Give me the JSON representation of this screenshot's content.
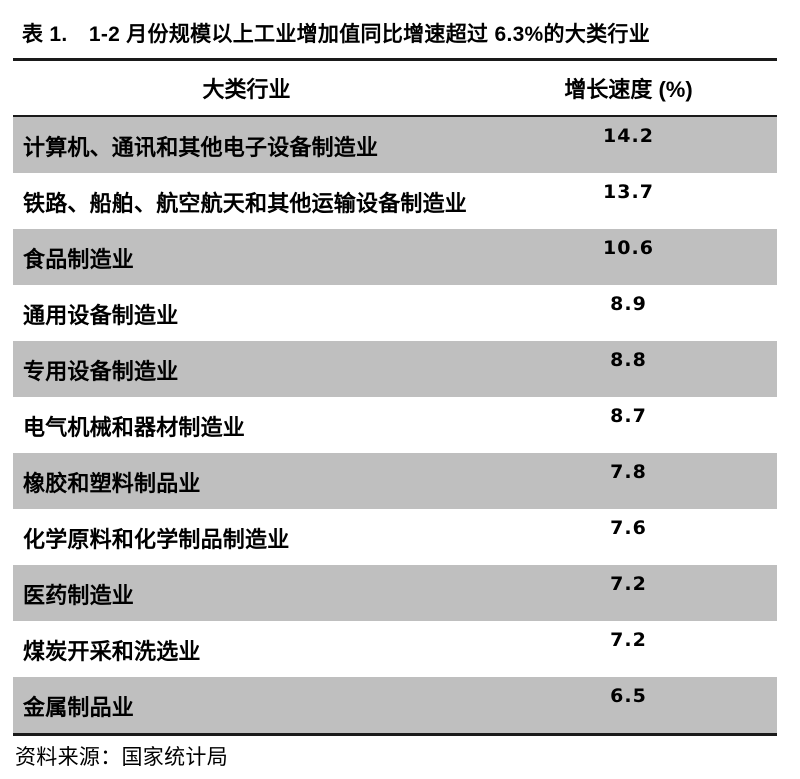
{
  "page": {
    "title": "表 1.　1-2 月份规模以上工业增加值同比增速超过 6.3%的大类行业",
    "source_note": "资料来源：国家统计局"
  },
  "table": {
    "columns": [
      {
        "key": "industry",
        "label": "大类行业"
      },
      {
        "key": "growth",
        "label": "增长速度 (%)"
      }
    ],
    "rows": [
      {
        "industry": "计算机、通讯和其他电子设备制造业",
        "growth": "14.2"
      },
      {
        "industry": "铁路、船舶、航空航天和其他运输设备制造业",
        "growth": "13.7"
      },
      {
        "industry": "食品制造业",
        "growth": "10.6"
      },
      {
        "industry": "通用设备制造业",
        "growth": "8.9"
      },
      {
        "industry": "专用设备制造业",
        "growth": "8.8"
      },
      {
        "industry": "电气机械和器材制造业",
        "growth": "8.7"
      },
      {
        "industry": "橡胶和塑料制品业",
        "growth": "7.8"
      },
      {
        "industry": "化学原料和化学制品制造业",
        "growth": "7.6"
      },
      {
        "industry": "医药制造业",
        "growth": "7.2"
      },
      {
        "industry": "煤炭开采和洗选业",
        "growth": "7.2"
      },
      {
        "industry": "金属制品业",
        "growth": "6.5"
      }
    ]
  },
  "colors": {
    "row_shade": "#bfbfbf",
    "rule": "#1a1a1a",
    "text": "#000000",
    "background": "#ffffff"
  }
}
